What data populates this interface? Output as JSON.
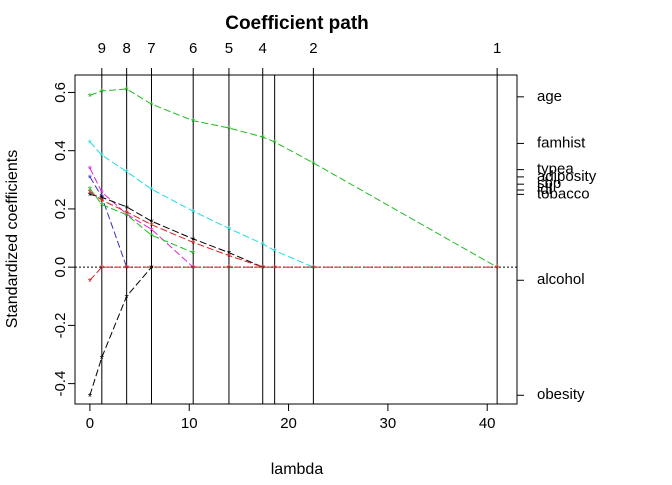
{
  "chart_data": {
    "type": "line",
    "title": "Coefficient path",
    "xlabel": "lambda",
    "ylabel": "Standardized coefficients",
    "xlim": [
      -1.5,
      43
    ],
    "ylim": [
      -0.47,
      0.66
    ],
    "x_ticks": [
      0,
      10,
      20,
      30,
      40
    ],
    "y_ticks": [
      -0.4,
      -0.2,
      0.0,
      0.2,
      0.4,
      0.6
    ],
    "x_tick_labels": [
      "0",
      "10",
      "20",
      "30",
      "40"
    ],
    "y_tick_labels": [
      "-0.4",
      "-0.2",
      "0.0",
      "0.2",
      "0.4",
      "0.6"
    ],
    "knots": [
      1.2,
      3.7,
      6.2,
      10.4,
      14.0,
      17.4,
      18.6,
      22.5,
      41.0
    ],
    "top_axis": {
      "positions": [
        1.2,
        3.7,
        6.2,
        10.4,
        14.0,
        17.4,
        22.5,
        41.0
      ],
      "labels": [
        "9",
        "8",
        "7",
        "6",
        "5",
        "4",
        "2",
        "1"
      ]
    },
    "zero_line": true,
    "series": [
      {
        "name": "age",
        "color": "#22bb22",
        "x": [
          0,
          1.2,
          3.7,
          6.2,
          10.4,
          14.0,
          17.4,
          18.6,
          22.5,
          41.0
        ],
        "values": [
          0.59,
          0.605,
          0.612,
          0.56,
          0.503,
          0.478,
          0.447,
          0.43,
          0.358,
          0.0
        ],
        "label_y": 0.585
      },
      {
        "name": "famhist",
        "color": "#22dddd",
        "x": [
          0,
          1.2,
          3.7,
          6.2,
          10.4,
          14.0,
          17.4,
          18.6,
          22.5
        ],
        "values": [
          0.43,
          0.385,
          0.328,
          0.268,
          0.192,
          0.133,
          0.08,
          0.057,
          0.0
        ],
        "label_y": 0.425
      },
      {
        "name": "typea",
        "color": "#dd22dd",
        "x": [
          0,
          1.2,
          3.7,
          6.2,
          10.4
        ],
        "values": [
          0.34,
          0.258,
          0.182,
          0.13,
          0.0
        ],
        "label_y": 0.335
      },
      {
        "name": "adiposity",
        "color": "#3333bb",
        "x": [
          0,
          1.2,
          3.7
        ],
        "values": [
          0.31,
          0.242,
          0.0
        ],
        "label_y": 0.31
      },
      {
        "name": "sbp",
        "color": "#000000",
        "x": [
          0,
          1.2,
          3.7,
          6.2,
          10.4,
          14.0,
          17.4
        ],
        "values": [
          0.25,
          0.24,
          0.207,
          0.158,
          0.097,
          0.05,
          0.0
        ],
        "label_y": 0.285
      },
      {
        "name": "ldl",
        "color": "#dd2222",
        "x": [
          0,
          1.2,
          3.7,
          6.2,
          10.4,
          14.0,
          17.4
        ],
        "values": [
          0.26,
          0.23,
          0.19,
          0.146,
          0.085,
          0.04,
          0.0
        ],
        "label_y": 0.265
      },
      {
        "name": "tobacco",
        "color": "#22bb22",
        "x": [
          0,
          1.2,
          3.7,
          6.2,
          10.4
        ],
        "values": [
          0.27,
          0.215,
          0.18,
          0.11,
          0.05
        ],
        "label_y": 0.25
      },
      {
        "name": "alcohol",
        "color": "#dd2222",
        "x": [
          0,
          1.2,
          3.7,
          6.2,
          10.4,
          14.0,
          17.4,
          18.6,
          22.5,
          41.0
        ],
        "values": [
          -0.045,
          0.0,
          0.0,
          0.0,
          0.0,
          0.0,
          0.0,
          0.0,
          0.0,
          0.0
        ],
        "label_y": -0.045
      },
      {
        "name": "obesity",
        "color": "#000000",
        "x": [
          0,
          1.2,
          3.7,
          6.2
        ],
        "values": [
          -0.44,
          -0.31,
          -0.1,
          0.0
        ],
        "label_y": -0.44
      }
    ]
  }
}
